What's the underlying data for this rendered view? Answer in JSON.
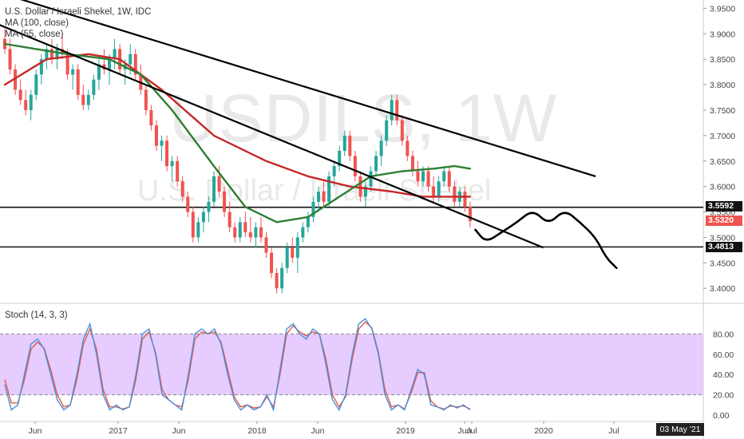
{
  "chart_data": {
    "type": "candlestick",
    "watermark": {
      "symbol": "USDILS, 1W",
      "description": "U.S. Dollar / Israeli Shekel"
    },
    "legend": {
      "title": "U.S. Dollar / Israeli Shekel, 1W, IDC",
      "ma100": "MA (100, close)",
      "ma55": "MA (55, close)",
      "stoch": "Stoch (14, 3, 3)"
    },
    "colors": {
      "up": "#26a69a",
      "down": "#ef5350",
      "ma100": "#c62828",
      "ma55": "#2e7d32",
      "stoch_k": "#4a90d9",
      "stoch_d": "#e45a4a",
      "stoch_band": "#e6ccff"
    },
    "price_axis": {
      "min": 3.38,
      "max": 3.96,
      "ticks": [
        "3.9500",
        "3.9000",
        "3.8500",
        "3.8000",
        "3.7500",
        "3.7000",
        "3.6500",
        "3.6000",
        "3.5500",
        "3.5000",
        "3.4500",
        "3.4000"
      ]
    },
    "stoch_axis": {
      "ticks": [
        "80.00",
        "60.00",
        "40.00",
        "20.00",
        "0.00"
      ],
      "upper_band": 80,
      "lower_band": 20
    },
    "time_axis": {
      "labels": [
        "Jun",
        "2017",
        "Jun",
        "2018",
        "Jun",
        "2019",
        "Jun",
        "Jul",
        "2020",
        "Jul"
      ],
      "cursor_label": "03 May '21"
    },
    "horizontal_levels": [
      {
        "label": "3.5592",
        "value": 3.5592
      },
      {
        "label": "3.4813",
        "value": 3.4813
      }
    ],
    "last_price": {
      "label": "3.5320",
      "value": 3.532
    },
    "candles": [
      {
        "t": 0,
        "o": 3.89,
        "h": 3.91,
        "l": 3.86,
        "c": 3.87
      },
      {
        "t": 1,
        "o": 3.87,
        "h": 3.89,
        "l": 3.82,
        "c": 3.83
      },
      {
        "t": 2,
        "o": 3.83,
        "h": 3.84,
        "l": 3.78,
        "c": 3.79
      },
      {
        "t": 3,
        "o": 3.79,
        "h": 3.81,
        "l": 3.76,
        "c": 3.77
      },
      {
        "t": 4,
        "o": 3.77,
        "h": 3.79,
        "l": 3.74,
        "c": 3.75
      },
      {
        "t": 5,
        "o": 3.75,
        "h": 3.79,
        "l": 3.73,
        "c": 3.78
      },
      {
        "t": 6,
        "o": 3.78,
        "h": 3.83,
        "l": 3.77,
        "c": 3.82
      },
      {
        "t": 7,
        "o": 3.82,
        "h": 3.86,
        "l": 3.8,
        "c": 3.85
      },
      {
        "t": 8,
        "o": 3.85,
        "h": 3.88,
        "l": 3.83,
        "c": 3.87
      },
      {
        "t": 9,
        "o": 3.87,
        "h": 3.89,
        "l": 3.84,
        "c": 3.85
      },
      {
        "t": 10,
        "o": 3.85,
        "h": 3.88,
        "l": 3.83,
        "c": 3.87
      },
      {
        "t": 11,
        "o": 3.87,
        "h": 3.9,
        "l": 3.85,
        "c": 3.86
      },
      {
        "t": 12,
        "o": 3.86,
        "h": 3.87,
        "l": 3.81,
        "c": 3.82
      },
      {
        "t": 13,
        "o": 3.82,
        "h": 3.84,
        "l": 3.79,
        "c": 3.83
      },
      {
        "t": 14,
        "o": 3.83,
        "h": 3.84,
        "l": 3.77,
        "c": 3.78
      },
      {
        "t": 15,
        "o": 3.78,
        "h": 3.8,
        "l": 3.75,
        "c": 3.76
      },
      {
        "t": 16,
        "o": 3.76,
        "h": 3.79,
        "l": 3.75,
        "c": 3.78
      },
      {
        "t": 17,
        "o": 3.78,
        "h": 3.82,
        "l": 3.77,
        "c": 3.81
      },
      {
        "t": 18,
        "o": 3.81,
        "h": 3.85,
        "l": 3.79,
        "c": 3.84
      },
      {
        "t": 19,
        "o": 3.84,
        "h": 3.87,
        "l": 3.82,
        "c": 3.83
      },
      {
        "t": 20,
        "o": 3.83,
        "h": 3.86,
        "l": 3.8,
        "c": 3.85
      },
      {
        "t": 21,
        "o": 3.85,
        "h": 3.89,
        "l": 3.83,
        "c": 3.87
      },
      {
        "t": 22,
        "o": 3.87,
        "h": 3.88,
        "l": 3.82,
        "c": 3.83
      },
      {
        "t": 23,
        "o": 3.83,
        "h": 3.85,
        "l": 3.8,
        "c": 3.84
      },
      {
        "t": 24,
        "o": 3.84,
        "h": 3.88,
        "l": 3.82,
        "c": 3.86
      },
      {
        "t": 25,
        "o": 3.86,
        "h": 3.87,
        "l": 3.81,
        "c": 3.82
      },
      {
        "t": 26,
        "o": 3.82,
        "h": 3.84,
        "l": 3.78,
        "c": 3.79
      },
      {
        "t": 27,
        "o": 3.79,
        "h": 3.8,
        "l": 3.74,
        "c": 3.75
      },
      {
        "t": 28,
        "o": 3.75,
        "h": 3.76,
        "l": 3.71,
        "c": 3.72
      },
      {
        "t": 29,
        "o": 3.72,
        "h": 3.73,
        "l": 3.67,
        "c": 3.68
      },
      {
        "t": 30,
        "o": 3.68,
        "h": 3.7,
        "l": 3.65,
        "c": 3.69
      },
      {
        "t": 31,
        "o": 3.69,
        "h": 3.7,
        "l": 3.63,
        "c": 3.64
      },
      {
        "t": 32,
        "o": 3.64,
        "h": 3.66,
        "l": 3.61,
        "c": 3.65
      },
      {
        "t": 33,
        "o": 3.65,
        "h": 3.66,
        "l": 3.6,
        "c": 3.61
      },
      {
        "t": 34,
        "o": 3.61,
        "h": 3.62,
        "l": 3.57,
        "c": 3.58
      },
      {
        "t": 35,
        "o": 3.58,
        "h": 3.59,
        "l": 3.54,
        "c": 3.55
      },
      {
        "t": 36,
        "o": 3.55,
        "h": 3.56,
        "l": 3.49,
        "c": 3.5
      },
      {
        "t": 37,
        "o": 3.5,
        "h": 3.54,
        "l": 3.49,
        "c": 3.53
      },
      {
        "t": 38,
        "o": 3.53,
        "h": 3.56,
        "l": 3.51,
        "c": 3.55
      },
      {
        "t": 39,
        "o": 3.55,
        "h": 3.58,
        "l": 3.53,
        "c": 3.57
      },
      {
        "t": 40,
        "o": 3.57,
        "h": 3.63,
        "l": 3.56,
        "c": 3.62
      },
      {
        "t": 41,
        "o": 3.62,
        "h": 3.64,
        "l": 3.58,
        "c": 3.59
      },
      {
        "t": 42,
        "o": 3.59,
        "h": 3.6,
        "l": 3.54,
        "c": 3.55
      },
      {
        "t": 43,
        "o": 3.55,
        "h": 3.57,
        "l": 3.51,
        "c": 3.52
      },
      {
        "t": 44,
        "o": 3.52,
        "h": 3.53,
        "l": 3.49,
        "c": 3.5
      },
      {
        "t": 45,
        "o": 3.5,
        "h": 3.54,
        "l": 3.49,
        "c": 3.53
      },
      {
        "t": 46,
        "o": 3.53,
        "h": 3.55,
        "l": 3.5,
        "c": 3.51
      },
      {
        "t": 47,
        "o": 3.51,
        "h": 3.54,
        "l": 3.49,
        "c": 3.5
      },
      {
        "t": 48,
        "o": 3.5,
        "h": 3.53,
        "l": 3.48,
        "c": 3.52
      },
      {
        "t": 49,
        "o": 3.52,
        "h": 3.54,
        "l": 3.49,
        "c": 3.5
      },
      {
        "t": 50,
        "o": 3.5,
        "h": 3.51,
        "l": 3.46,
        "c": 3.47
      },
      {
        "t": 51,
        "o": 3.47,
        "h": 3.48,
        "l": 3.42,
        "c": 3.43
      },
      {
        "t": 52,
        "o": 3.43,
        "h": 3.44,
        "l": 3.39,
        "c": 3.4
      },
      {
        "t": 53,
        "o": 3.4,
        "h": 3.45,
        "l": 3.39,
        "c": 3.44
      },
      {
        "t": 54,
        "o": 3.44,
        "h": 3.49,
        "l": 3.43,
        "c": 3.48
      },
      {
        "t": 55,
        "o": 3.48,
        "h": 3.5,
        "l": 3.45,
        "c": 3.46
      },
      {
        "t": 56,
        "o": 3.46,
        "h": 3.51,
        "l": 3.43,
        "c": 3.5
      },
      {
        "t": 57,
        "o": 3.5,
        "h": 3.53,
        "l": 3.49,
        "c": 3.52
      },
      {
        "t": 58,
        "o": 3.52,
        "h": 3.55,
        "l": 3.51,
        "c": 3.54
      },
      {
        "t": 59,
        "o": 3.54,
        "h": 3.58,
        "l": 3.53,
        "c": 3.57
      },
      {
        "t": 60,
        "o": 3.57,
        "h": 3.6,
        "l": 3.55,
        "c": 3.59
      },
      {
        "t": 61,
        "o": 3.59,
        "h": 3.61,
        "l": 3.56,
        "c": 3.57
      },
      {
        "t": 62,
        "o": 3.57,
        "h": 3.63,
        "l": 3.56,
        "c": 3.62
      },
      {
        "t": 63,
        "o": 3.62,
        "h": 3.65,
        "l": 3.6,
        "c": 3.64
      },
      {
        "t": 64,
        "o": 3.64,
        "h": 3.68,
        "l": 3.63,
        "c": 3.67
      },
      {
        "t": 65,
        "o": 3.67,
        "h": 3.71,
        "l": 3.66,
        "c": 3.7
      },
      {
        "t": 66,
        "o": 3.7,
        "h": 3.71,
        "l": 3.65,
        "c": 3.66
      },
      {
        "t": 67,
        "o": 3.66,
        "h": 3.67,
        "l": 3.61,
        "c": 3.62
      },
      {
        "t": 68,
        "o": 3.62,
        "h": 3.63,
        "l": 3.57,
        "c": 3.58
      },
      {
        "t": 69,
        "o": 3.58,
        "h": 3.61,
        "l": 3.56,
        "c": 3.6
      },
      {
        "t": 70,
        "o": 3.6,
        "h": 3.64,
        "l": 3.59,
        "c": 3.63
      },
      {
        "t": 71,
        "o": 3.63,
        "h": 3.67,
        "l": 3.62,
        "c": 3.66
      },
      {
        "t": 72,
        "o": 3.66,
        "h": 3.7,
        "l": 3.64,
        "c": 3.69
      },
      {
        "t": 73,
        "o": 3.69,
        "h": 3.74,
        "l": 3.68,
        "c": 3.73
      },
      {
        "t": 74,
        "o": 3.73,
        "h": 3.78,
        "l": 3.72,
        "c": 3.77
      },
      {
        "t": 75,
        "o": 3.77,
        "h": 3.78,
        "l": 3.72,
        "c": 3.73
      },
      {
        "t": 76,
        "o": 3.73,
        "h": 3.74,
        "l": 3.68,
        "c": 3.69
      },
      {
        "t": 77,
        "o": 3.69,
        "h": 3.7,
        "l": 3.65,
        "c": 3.66
      },
      {
        "t": 78,
        "o": 3.66,
        "h": 3.67,
        "l": 3.62,
        "c": 3.63
      },
      {
        "t": 79,
        "o": 3.63,
        "h": 3.65,
        "l": 3.6,
        "c": 3.61
      },
      {
        "t": 80,
        "o": 3.61,
        "h": 3.64,
        "l": 3.6,
        "c": 3.63
      },
      {
        "t": 81,
        "o": 3.63,
        "h": 3.64,
        "l": 3.59,
        "c": 3.6
      },
      {
        "t": 82,
        "o": 3.6,
        "h": 3.62,
        "l": 3.57,
        "c": 3.58
      },
      {
        "t": 83,
        "o": 3.58,
        "h": 3.62,
        "l": 3.57,
        "c": 3.61
      },
      {
        "t": 84,
        "o": 3.61,
        "h": 3.64,
        "l": 3.6,
        "c": 3.63
      },
      {
        "t": 85,
        "o": 3.63,
        "h": 3.64,
        "l": 3.59,
        "c": 3.6
      },
      {
        "t": 86,
        "o": 3.6,
        "h": 3.61,
        "l": 3.56,
        "c": 3.57
      },
      {
        "t": 87,
        "o": 3.57,
        "h": 3.6,
        "l": 3.56,
        "c": 3.59
      },
      {
        "t": 88,
        "o": 3.59,
        "h": 3.6,
        "l": 3.55,
        "c": 3.56
      },
      {
        "t": 89,
        "o": 3.56,
        "h": 3.57,
        "l": 3.52,
        "c": 3.532
      }
    ],
    "ma100": [
      [
        0,
        3.8
      ],
      [
        8,
        3.85
      ],
      [
        16,
        3.86
      ],
      [
        22,
        3.85
      ],
      [
        30,
        3.79
      ],
      [
        40,
        3.7
      ],
      [
        50,
        3.65
      ],
      [
        58,
        3.62
      ],
      [
        66,
        3.6
      ],
      [
        74,
        3.59
      ],
      [
        80,
        3.58
      ],
      [
        86,
        3.58
      ],
      [
        89,
        3.58
      ]
    ],
    "ma55": [
      [
        0,
        3.88
      ],
      [
        6,
        3.87
      ],
      [
        12,
        3.86
      ],
      [
        20,
        3.85
      ],
      [
        26,
        3.82
      ],
      [
        32,
        3.75
      ],
      [
        40,
        3.64
      ],
      [
        46,
        3.56
      ],
      [
        52,
        3.53
      ],
      [
        58,
        3.54
      ],
      [
        64,
        3.58
      ],
      [
        70,
        3.62
      ],
      [
        76,
        3.63
      ],
      [
        82,
        3.635
      ],
      [
        86,
        3.64
      ],
      [
        89,
        3.635
      ]
    ],
    "trendlines": [
      {
        "from": [
          -4,
          3.99
        ],
        "to": [
          113,
          3.62
        ]
      },
      {
        "from": [
          -4,
          3.93
        ],
        "to": [
          103,
          3.48
        ]
      }
    ],
    "projection": [
      [
        90,
        3.515
      ],
      [
        92,
        3.49
      ],
      [
        95,
        3.51
      ],
      [
        98,
        3.53
      ],
      [
        101,
        3.555
      ],
      [
        104,
        3.525
      ],
      [
        107,
        3.555
      ],
      [
        110,
        3.53
      ],
      [
        113,
        3.5
      ],
      [
        115,
        3.46
      ],
      [
        117,
        3.44
      ]
    ],
    "stoch_k": [
      30,
      5,
      10,
      40,
      70,
      75,
      65,
      40,
      15,
      5,
      10,
      40,
      75,
      90,
      60,
      20,
      5,
      10,
      5,
      8,
      40,
      80,
      85,
      60,
      20,
      15,
      10,
      5,
      40,
      80,
      85,
      80,
      85,
      70,
      40,
      15,
      5,
      10,
      5,
      8,
      20,
      5,
      45,
      85,
      90,
      80,
      75,
      85,
      80,
      50,
      15,
      5,
      20,
      60,
      90,
      95,
      85,
      60,
      20,
      5,
      10,
      5,
      25,
      45,
      40,
      10,
      8,
      5,
      10,
      7,
      10,
      5
    ],
    "stoch_d": [
      35,
      12,
      12,
      35,
      65,
      72,
      66,
      45,
      20,
      8,
      10,
      35,
      70,
      85,
      65,
      25,
      8,
      8,
      6,
      8,
      35,
      75,
      82,
      62,
      25,
      15,
      10,
      8,
      35,
      75,
      82,
      80,
      82,
      72,
      45,
      18,
      8,
      10,
      7,
      8,
      18,
      8,
      40,
      80,
      88,
      82,
      78,
      82,
      80,
      55,
      20,
      8,
      18,
      55,
      85,
      92,
      86,
      62,
      25,
      8,
      10,
      6,
      22,
      42,
      42,
      14,
      8,
      6,
      9,
      8,
      9,
      6
    ]
  }
}
